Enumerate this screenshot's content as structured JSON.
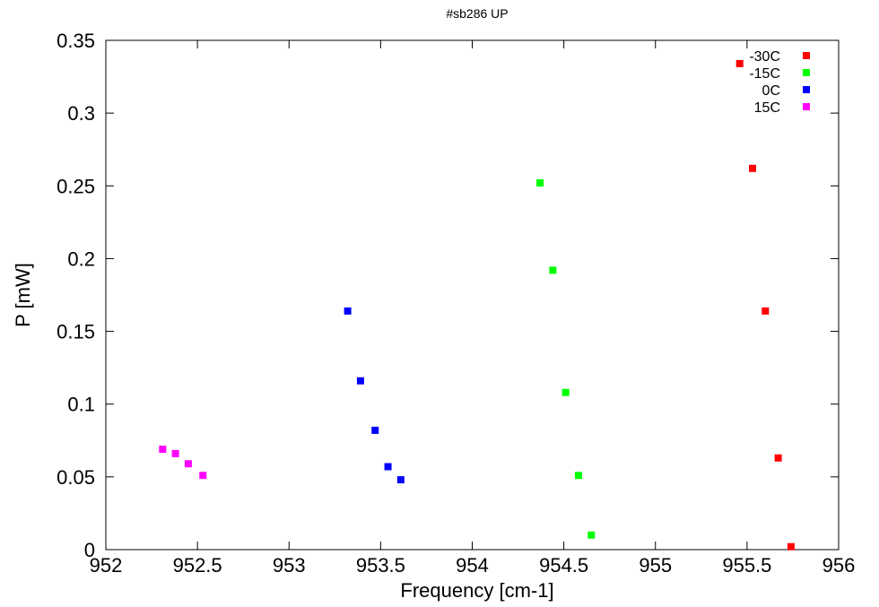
{
  "chart_data": {
    "type": "scatter",
    "title": "#sb286 UP",
    "xlabel": "Frequency [cm-1]",
    "ylabel": "P [mW]",
    "xlim": [
      952,
      956
    ],
    "ylim": [
      0,
      0.35
    ],
    "xticks": [
      "952",
      "952.5",
      "953",
      "953.5",
      "954",
      "954.5",
      "955",
      "955.5",
      "956"
    ],
    "yticks": [
      "0",
      "0.05",
      "0.1",
      "0.15",
      "0.2",
      "0.25",
      "0.3",
      "0.35"
    ],
    "grid": false,
    "legend_position": "top-right",
    "series": [
      {
        "name": "-30C",
        "color": "#ff0000",
        "x": [
          955.46,
          955.53,
          955.6,
          955.67,
          955.74
        ],
        "y": [
          0.334,
          0.262,
          0.164,
          0.063,
          0.002
        ]
      },
      {
        "name": "-15C",
        "color": "#00ff00",
        "x": [
          954.37,
          954.44,
          954.51,
          954.58,
          954.65
        ],
        "y": [
          0.252,
          0.192,
          0.108,
          0.051,
          0.01
        ]
      },
      {
        "name": "0C",
        "color": "#0000ff",
        "x": [
          953.32,
          953.39,
          953.47,
          953.54,
          953.61
        ],
        "y": [
          0.164,
          0.116,
          0.082,
          0.057,
          0.048
        ]
      },
      {
        "name": "15C",
        "color": "#ff00ff",
        "x": [
          952.31,
          952.38,
          952.45,
          952.53
        ],
        "y": [
          0.069,
          0.066,
          0.059,
          0.051
        ]
      }
    ]
  }
}
